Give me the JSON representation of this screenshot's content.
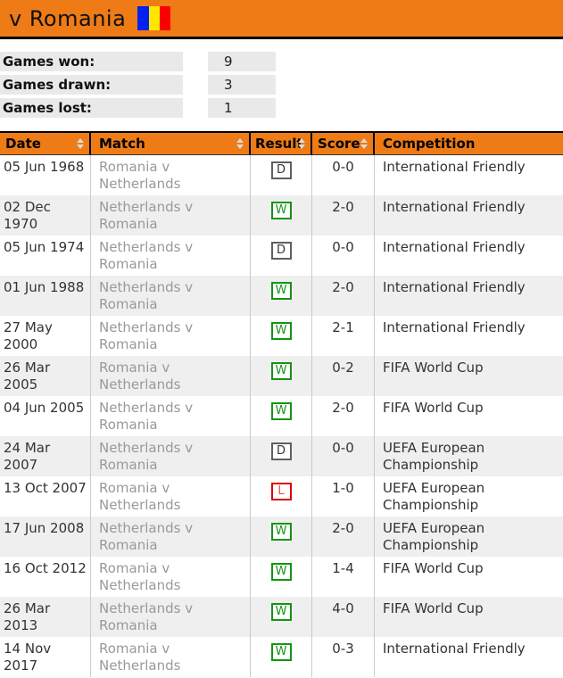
{
  "topbar": {
    "title": "v Romania",
    "background": "#ee7b16",
    "flag": {
      "name": "romania-flag",
      "stripe_colors": [
        "#0021f0",
        "#ffe500",
        "#fa0000"
      ]
    }
  },
  "stats": {
    "rows": [
      {
        "label": "Games won:",
        "value": "9"
      },
      {
        "label": "Games drawn:",
        "value": "3"
      },
      {
        "label": "Games lost:",
        "value": "1"
      }
    ]
  },
  "results_table": {
    "header_background": "#ee7b16",
    "columns": [
      {
        "label": "Date",
        "sortable": true
      },
      {
        "label": "Match",
        "sortable": true
      },
      {
        "label": "Result",
        "sortable": true
      },
      {
        "label": "Score",
        "sortable": true
      },
      {
        "label": "Competition",
        "sortable": false
      }
    ],
    "result_styles": {
      "W": {
        "border": "#149414",
        "text": "#149414"
      },
      "D": {
        "border": "#5f5f5f",
        "text": "#333333"
      },
      "L": {
        "border": "#e00000",
        "text": "#f04b4b"
      }
    },
    "rows": [
      {
        "date": "05 Jun 1968",
        "match": "Romania v\nNetherlands",
        "result": "D",
        "score": "0-0",
        "competition": "International Friendly"
      },
      {
        "date": "02 Dec\n1970",
        "match": "Netherlands v\nRomania",
        "result": "W",
        "score": "2-0",
        "competition": "International Friendly"
      },
      {
        "date": "05 Jun 1974",
        "match": "Netherlands v\nRomania",
        "result": "D",
        "score": "0-0",
        "competition": "International Friendly"
      },
      {
        "date": "01 Jun 1988",
        "match": "Netherlands v\nRomania",
        "result": "W",
        "score": "2-0",
        "competition": "International Friendly"
      },
      {
        "date": "27 May\n2000",
        "match": "Netherlands v\nRomania",
        "result": "W",
        "score": "2-1",
        "competition": "International Friendly"
      },
      {
        "date": "26 Mar\n2005",
        "match": "Romania v\nNetherlands",
        "result": "W",
        "score": "0-2",
        "competition": "FIFA World Cup"
      },
      {
        "date": "04 Jun 2005",
        "match": "Netherlands v\nRomania",
        "result": "W",
        "score": "2-0",
        "competition": "FIFA World Cup"
      },
      {
        "date": "24 Mar\n2007",
        "match": "Netherlands v\nRomania",
        "result": "D",
        "score": "0-0",
        "competition": "UEFA European Championship"
      },
      {
        "date": "13 Oct 2007",
        "match": "Romania v\nNetherlands",
        "result": "L",
        "score": "1-0",
        "competition": "UEFA European Championship"
      },
      {
        "date": "17 Jun 2008",
        "match": "Netherlands v\nRomania",
        "result": "W",
        "score": "2-0",
        "competition": "UEFA European Championship"
      },
      {
        "date": "16 Oct 2012",
        "match": "Romania v\nNetherlands",
        "result": "W",
        "score": "1-4",
        "competition": "FIFA World Cup"
      },
      {
        "date": "26 Mar\n2013",
        "match": "Netherlands v\nRomania",
        "result": "W",
        "score": "4-0",
        "competition": "FIFA World Cup"
      },
      {
        "date": "14 Nov\n2017",
        "match": "Romania v\nNetherlands",
        "result": "W",
        "score": "0-3",
        "competition": "International Friendly"
      }
    ]
  }
}
